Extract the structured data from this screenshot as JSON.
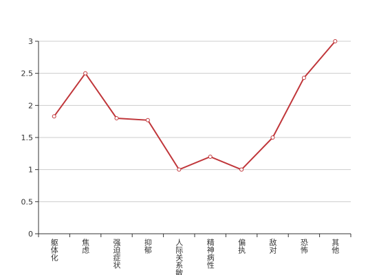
{
  "chart_data": {
    "type": "line",
    "categories": [
      "躯体化",
      "焦虑",
      "强迫症状",
      "抑郁",
      "人际关系敏感",
      "精神病性",
      "偏执",
      "敌对",
      "恐怖",
      "其他"
    ],
    "series": [
      {
        "color": "#c0363a",
        "values": [
          1.83,
          2.5,
          1.8,
          1.77,
          1.0,
          1.2,
          1.0,
          1.5,
          2.43,
          3.0
        ]
      }
    ],
    "ylim": [
      0,
      3
    ],
    "yticks": [
      0,
      0.5,
      1,
      1.5,
      2,
      2.5,
      3
    ],
    "grid": true
  }
}
